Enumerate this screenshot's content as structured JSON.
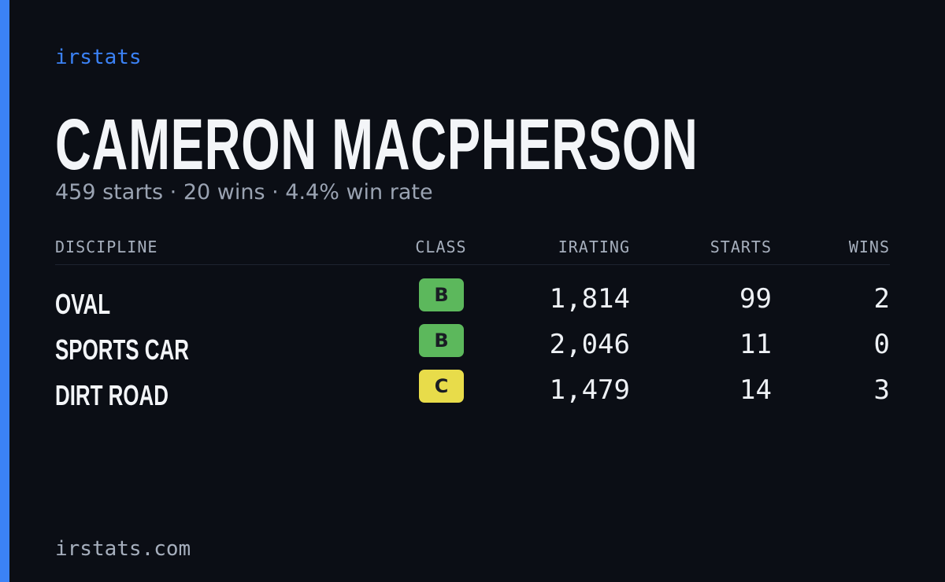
{
  "brand": "irstats",
  "player": {
    "name": "CAMERON MACPHERSON",
    "summary": "459 starts · 20 wins · 4.4% win rate"
  },
  "table": {
    "headers": [
      "DISCIPLINE",
      "CLASS",
      "IRATING",
      "STARTS",
      "WINS"
    ],
    "rows": [
      {
        "discipline": "OVAL",
        "class": "B",
        "class_color": "#5cb85c",
        "irating": "1,814",
        "starts": "99",
        "wins": "2"
      },
      {
        "discipline": "SPORTS CAR",
        "class": "B",
        "class_color": "#5cb85c",
        "irating": "2,046",
        "starts": "11",
        "wins": "0"
      },
      {
        "discipline": "DIRT ROAD",
        "class": "C",
        "class_color": "#e8dc4a",
        "irating": "1,479",
        "starts": "14",
        "wins": "3"
      }
    ]
  },
  "footer": "irstats.com"
}
